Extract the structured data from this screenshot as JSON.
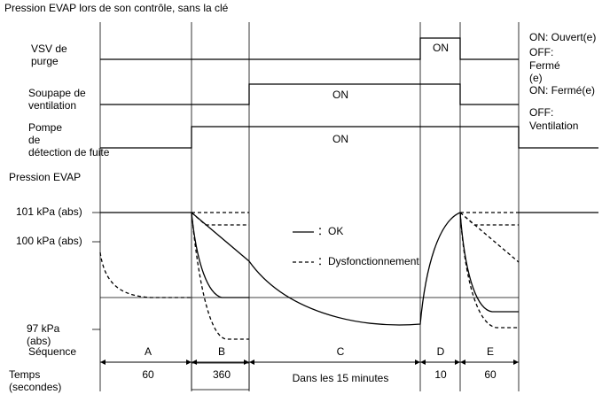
{
  "title": "Pression EVAP lors de son contrôle, sans la clé",
  "rows": [
    {
      "label": [
        "VSV de",
        "purge"
      ],
      "on": "ON",
      "notes": [
        "ON: Ouvert(e)",
        "OFF:",
        "Fermé",
        "(e)"
      ]
    },
    {
      "label": [
        "Soupape de",
        "ventilation"
      ],
      "on": "ON",
      "notes": [
        "ON: Fermé(e)",
        "OFF:",
        "Ventilation"
      ]
    },
    {
      "label": [
        "Pompe",
        "de",
        "détection de fuite"
      ],
      "on": "ON"
    }
  ],
  "pressure": {
    "label": "Pression EVAP",
    "levels": [
      "101 kPa (abs)",
      "100 kPa (abs)",
      "97 kPa",
      "(abs)"
    ]
  },
  "legend": [
    "：OK",
    "：Dysfonctionnement"
  ],
  "sequence": {
    "label": "Séquence",
    "steps": [
      "A",
      "B",
      "C",
      "D",
      "E"
    ]
  },
  "time": {
    "label": [
      "Temps",
      "(secondes)"
    ],
    "values": [
      "60",
      "360",
      "Dans les 15 minutes",
      "10",
      "60"
    ]
  }
}
